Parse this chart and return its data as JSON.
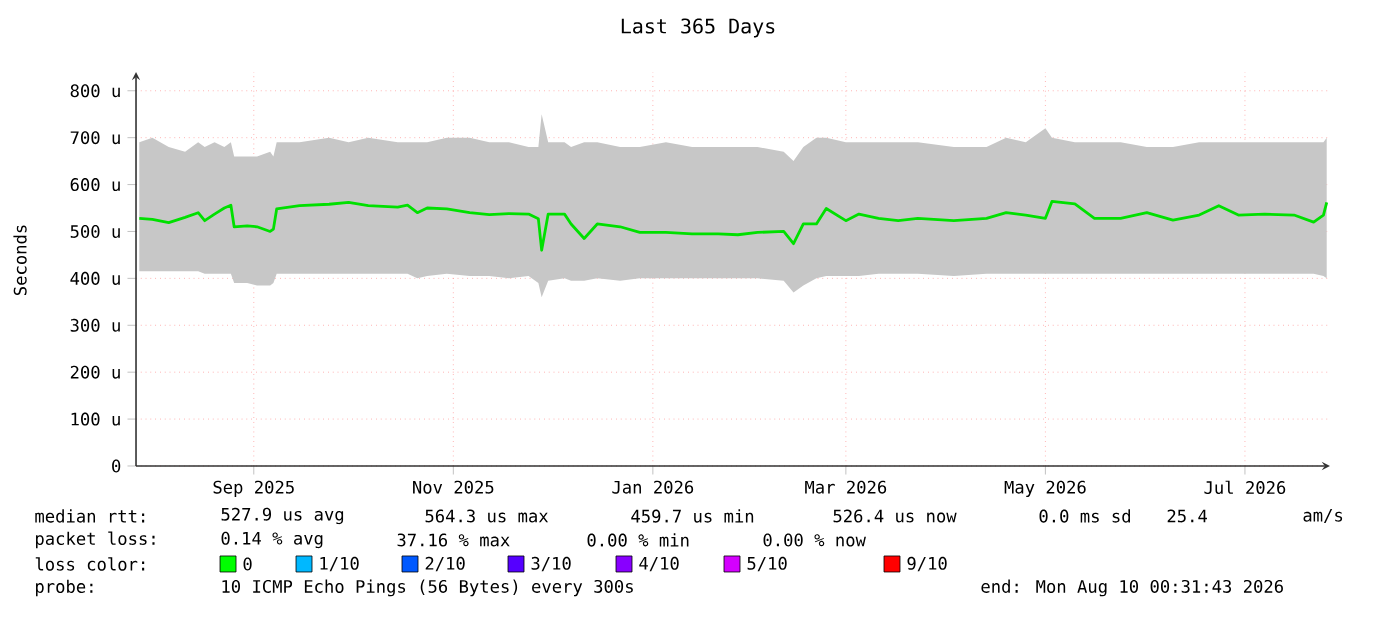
{
  "chart_data": {
    "type": "line",
    "title": "Last 365 Days",
    "ylabel": "Seconds",
    "x": [
      "2025-08-11",
      "2025-08-15",
      "2025-08-20",
      "2025-08-25",
      "2025-08-29",
      "2025-08-31",
      "2025-09-03",
      "2025-09-06",
      "2025-09-08",
      "2025-09-09",
      "2025-09-13",
      "2025-09-16",
      "2025-09-20",
      "2025-09-21",
      "2025-09-22",
      "2025-09-29",
      "2025-10-08",
      "2025-10-14",
      "2025-10-20",
      "2025-10-29",
      "2025-11-01",
      "2025-11-04",
      "2025-11-07",
      "2025-11-13",
      "2025-11-20",
      "2025-11-26",
      "2025-12-02",
      "2025-12-08",
      "2025-12-11",
      "2025-12-12",
      "2025-12-14",
      "2025-12-19",
      "2025-12-21",
      "2025-12-25",
      "2025-12-29",
      "2026-01-05",
      "2026-01-11",
      "2026-01-19",
      "2026-01-27",
      "2026-02-04",
      "2026-02-10",
      "2026-02-16",
      "2026-02-24",
      "2026-02-27",
      "2026-03-02",
      "2026-03-06",
      "2026-03-09",
      "2026-03-15",
      "2026-03-19",
      "2026-03-25",
      "2026-03-31",
      "2026-04-06",
      "2026-04-17",
      "2026-04-27",
      "2026-05-03",
      "2026-05-09",
      "2026-05-15",
      "2026-05-17",
      "2026-05-24",
      "2026-05-30",
      "2026-06-07",
      "2026-06-15",
      "2026-06-23",
      "2026-07-01",
      "2026-07-07",
      "2026-07-13",
      "2026-07-21",
      "2026-07-30",
      "2026-08-05",
      "2026-08-08",
      "2026-08-09"
    ],
    "series": [
      {
        "color": "#00e000",
        "values": [
          528,
          526,
          519,
          530,
          540,
          523,
          537,
          550,
          556,
          510,
          512,
          510,
          500,
          505,
          548,
          555,
          558,
          562,
          555,
          552,
          556,
          540,
          550,
          548,
          540,
          536,
          538,
          537,
          527,
          460,
          537,
          537,
          516,
          485,
          516,
          510,
          498,
          498,
          495,
          495,
          493,
          498,
          500,
          474,
          516,
          516,
          549,
          523,
          537,
          528,
          523,
          528,
          523,
          528,
          540,
          535,
          528,
          564,
          559,
          528,
          528,
          540,
          524,
          535,
          555,
          535,
          537,
          535,
          520,
          535,
          562
        ],
        "lower": [
          415,
          415,
          415,
          415,
          415,
          410,
          410,
          410,
          410,
          390,
          390,
          385,
          385,
          390,
          410,
          410,
          410,
          410,
          410,
          410,
          410,
          400,
          405,
          410,
          405,
          405,
          400,
          405,
          390,
          360,
          395,
          400,
          395,
          395,
          400,
          395,
          400,
          400,
          400,
          400,
          400,
          400,
          395,
          370,
          385,
          400,
          405,
          405,
          405,
          410,
          410,
          410,
          405,
          410,
          410,
          410,
          410,
          410,
          410,
          410,
          410,
          410,
          410,
          410,
          410,
          410,
          410,
          410,
          410,
          405,
          400
        ],
        "upper": [
          690,
          700,
          680,
          670,
          690,
          680,
          690,
          680,
          690,
          660,
          660,
          660,
          670,
          660,
          690,
          690,
          700,
          690,
          700,
          690,
          690,
          690,
          690,
          700,
          700,
          690,
          690,
          680,
          680,
          750,
          690,
          690,
          680,
          690,
          690,
          680,
          680,
          690,
          680,
          680,
          680,
          680,
          670,
          650,
          680,
          700,
          700,
          690,
          690,
          690,
          690,
          690,
          680,
          680,
          700,
          690,
          720,
          700,
          690,
          690,
          690,
          680,
          680,
          690,
          690,
          690,
          690,
          690,
          690,
          690,
          700
        ]
      }
    ],
    "xlim": [
      "2025-08-10",
      "2026-08-10"
    ],
    "xticks": [
      {
        "value": "2025-09-15",
        "label": "Sep 2025"
      },
      {
        "value": "2025-11-15",
        "label": "Nov 2025"
      },
      {
        "value": "2026-01-15",
        "label": "Jan 2026"
      },
      {
        "value": "2026-03-15",
        "label": "Mar 2026"
      },
      {
        "value": "2026-05-15",
        "label": "May 2026"
      },
      {
        "value": "2026-07-15",
        "label": "Jul 2026"
      }
    ],
    "ylim": [
      0,
      840
    ],
    "yticks": [
      0,
      {
        "value": 100,
        "label": "100 u"
      },
      {
        "value": 200,
        "label": "200 u"
      },
      {
        "value": 300,
        "label": "300 u"
      },
      {
        "value": 400,
        "label": "400 u"
      },
      {
        "value": 500,
        "label": "500 u"
      },
      {
        "value": 600,
        "label": "600 u"
      },
      {
        "value": 700,
        "label": "700 u"
      },
      {
        "value": 800,
        "label": "800 u"
      }
    ],
    "grid": true,
    "marker": "none",
    "line_style": "solid",
    "annotations": [
      "median rtt:",
      "527.9 us avg",
      "564.3 us max",
      "459.7 us min",
      "526.4 us now",
      "0.0 ms sd",
      "25.4",
      "am/s",
      "packet loss:",
      "0.14 % avg",
      "37.16 % max",
      "0.00 % min",
      "0.00 % now",
      "loss color:",
      "0",
      "1/10",
      "2/10",
      "3/10",
      "4/10",
      "5/10",
      "9/10",
      "probe:",
      "10 ICMP Echo Pings (56 Bytes) every 300s",
      "end: Mon Aug 10 00:31:43 2026"
    ]
  }
}
